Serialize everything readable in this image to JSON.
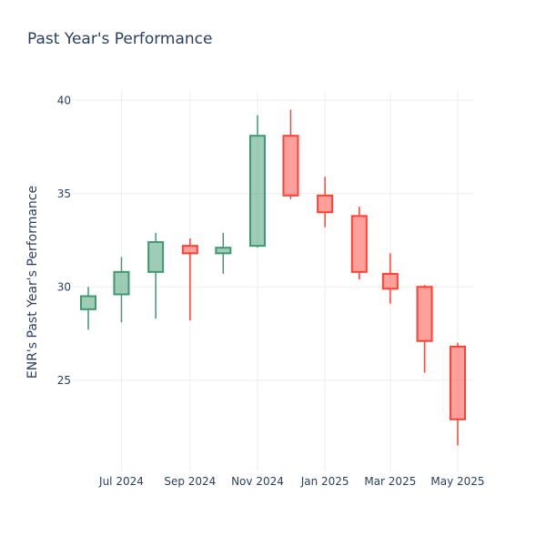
{
  "chart_data": {
    "type": "candlestick",
    "title": "Past Year's Performance",
    "xlabel": "",
    "ylabel": "ENR's Past Year's Performance",
    "ylim": [
      20.5,
      40.5
    ],
    "y_ticks": [
      25,
      30,
      35,
      40
    ],
    "x_ticks": [
      "Jul 2024",
      "Sep 2024",
      "Nov 2024",
      "Jan 2025",
      "Mar 2025",
      "May 2025"
    ],
    "grid": true,
    "colors": {
      "increasing": "#3d9970",
      "decreasing": "#ff4136"
    },
    "candles": [
      {
        "date": "2024-06",
        "open": 28.8,
        "high": 30.0,
        "low": 27.7,
        "close": 29.5
      },
      {
        "date": "2024-07",
        "open": 29.6,
        "high": 31.6,
        "low": 28.1,
        "close": 30.8
      },
      {
        "date": "2024-08",
        "open": 30.8,
        "high": 32.9,
        "low": 28.3,
        "close": 32.4
      },
      {
        "date": "2024-09",
        "open": 32.2,
        "high": 32.6,
        "low": 28.2,
        "close": 31.8
      },
      {
        "date": "2024-10",
        "open": 31.8,
        "high": 32.9,
        "low": 30.7,
        "close": 32.1
      },
      {
        "date": "2024-11",
        "open": 32.2,
        "high": 39.2,
        "low": 32.1,
        "close": 38.1
      },
      {
        "date": "2024-12",
        "open": 38.1,
        "high": 39.5,
        "low": 34.7,
        "close": 34.9
      },
      {
        "date": "2025-01",
        "open": 34.9,
        "high": 35.9,
        "low": 33.2,
        "close": 34.0
      },
      {
        "date": "2025-02",
        "open": 33.8,
        "high": 34.3,
        "low": 30.4,
        "close": 30.8
      },
      {
        "date": "2025-03",
        "open": 30.7,
        "high": 31.8,
        "low": 29.1,
        "close": 29.9
      },
      {
        "date": "2025-04",
        "open": 30.0,
        "high": 30.1,
        "low": 25.4,
        "close": 27.1
      },
      {
        "date": "2025-05",
        "open": 26.8,
        "high": 27.0,
        "low": 21.5,
        "close": 22.9
      }
    ]
  }
}
